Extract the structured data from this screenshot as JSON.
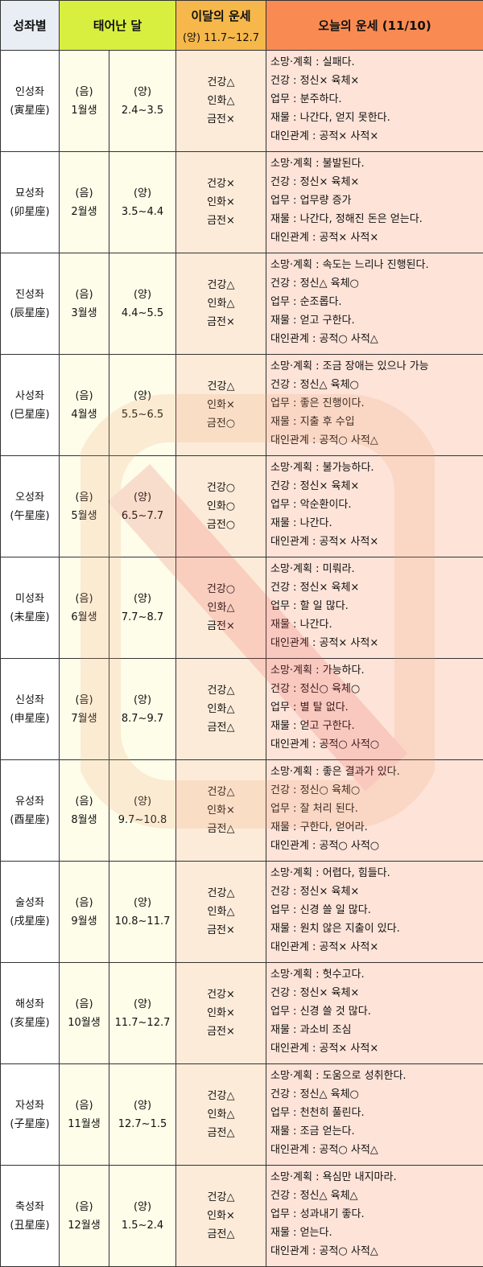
{
  "header": {
    "col_sign": "성좌별",
    "col_birth": "태어난 달",
    "col_month": "이달의 운세",
    "col_month_sub": "(양) 11.7~12.7",
    "col_today": "오늘의 운세 (11/10)"
  },
  "rows": [
    {
      "name": "인성좌",
      "hanja": "(寅星座)",
      "lunar": "(음)",
      "lunar_month": "1월생",
      "solar": "(양)",
      "solar_range": "2.4~3.5",
      "month": [
        "건강△",
        "인화△",
        "금전×"
      ],
      "today": [
        "소망·계획 : 실패다.",
        "건강 : 정신× 육체×",
        "업무 : 분주하다.",
        "재물 : 나간다, 얻지 못한다.",
        "대인관계 : 공적× 사적×"
      ]
    },
    {
      "name": "묘성좌",
      "hanja": "(卯星座)",
      "lunar": "(음)",
      "lunar_month": "2월생",
      "solar": "(양)",
      "solar_range": "3.5~4.4",
      "month": [
        "건강×",
        "인화×",
        "금전×"
      ],
      "today": [
        "소망·계획 : 불발된다.",
        "건강 : 정신× 육체×",
        "업무 : 업무량 증가",
        "재물 : 나간다, 정해진 돈은 얻는다.",
        "대인관계 : 공적× 사적×"
      ]
    },
    {
      "name": "진성좌",
      "hanja": "(辰星座)",
      "lunar": "(음)",
      "lunar_month": "3월생",
      "solar": "(양)",
      "solar_range": "4.4~5.5",
      "month": [
        "건강△",
        "인화△",
        "금전×"
      ],
      "today": [
        "소망·계획 : 속도는 느리나 진행된다.",
        "건강 : 정신△ 육체○",
        "업무 : 순조롭다.",
        "재물 : 얻고 구한다.",
        "대인관계 : 공적○ 사적△"
      ]
    },
    {
      "name": "사성좌",
      "hanja": "(巳星座)",
      "lunar": "(음)",
      "lunar_month": "4월생",
      "solar": "(양)",
      "solar_range": "5.5~6.5",
      "month": [
        "건강△",
        "인화×",
        "금전○"
      ],
      "today": [
        "소망·계획 : 조금 장애는 있으나 가능",
        "건강 : 정신△ 육체○",
        "업무 : 좋은 진행이다.",
        "재물 : 지출 후 수입",
        "대인관계 : 공적○ 사적△"
      ]
    },
    {
      "name": "오성좌",
      "hanja": "(午星座)",
      "lunar": "(음)",
      "lunar_month": "5월생",
      "solar": "(양)",
      "solar_range": "6.5~7.7",
      "month": [
        "건강○",
        "인화○",
        "금전○"
      ],
      "today": [
        "소망·계획 : 불가능하다.",
        "건강 : 정신× 육체×",
        "업무 : 악순환이다.",
        "재물 : 나간다.",
        "대인관계 : 공적× 사적×"
      ]
    },
    {
      "name": "미성좌",
      "hanja": "(未星座)",
      "lunar": "(음)",
      "lunar_month": "6월생",
      "solar": "(양)",
      "solar_range": "7.7~8.7",
      "month": [
        "건강○",
        "인화△",
        "금전×"
      ],
      "today": [
        "소망·계획 : 미뤄라.",
        "건강 : 정신× 육체×",
        "업무 : 할 일 많다.",
        "재물 : 나간다.",
        "대인관계 : 공적× 사적×"
      ]
    },
    {
      "name": "신성좌",
      "hanja": "(申星座)",
      "lunar": "(음)",
      "lunar_month": "7월생",
      "solar": "(양)",
      "solar_range": "8.7~9.7",
      "month": [
        "건강△",
        "인화△",
        "금전△"
      ],
      "today": [
        "소망·계획 : 가능하다.",
        "건강 : 정신○ 육체○",
        "업무 : 별 탈 없다.",
        "재물 : 얻고 구한다.",
        "대인관계 : 공적○ 사적○"
      ]
    },
    {
      "name": "유성좌",
      "hanja": "(酉星座)",
      "lunar": "(음)",
      "lunar_month": "8월생",
      "solar": "(양)",
      "solar_range": "9.7~10.8",
      "month": [
        "건강△",
        "인화×",
        "금전△"
      ],
      "today": [
        "소망·계획 : 좋은 결과가 있다.",
        "건강 : 정신○ 육체○",
        "업무 : 잘 처리 된다.",
        "재물 : 구한다, 얻어라.",
        "대인관계 : 공적○ 사적○"
      ]
    },
    {
      "name": "술성좌",
      "hanja": "(戌星座)",
      "lunar": "(음)",
      "lunar_month": "9월생",
      "solar": "(양)",
      "solar_range": "10.8~11.7",
      "month": [
        "건강△",
        "인화△",
        "금전×"
      ],
      "today": [
        "소망·계획 : 어렵다, 힘들다.",
        "건강 : 정신× 육체×",
        "업무 : 신경 쓸 일 많다.",
        "재물 : 원치 않은 지출이 있다.",
        "대인관계 : 공적× 사적×"
      ]
    },
    {
      "name": "해성좌",
      "hanja": "(亥星座)",
      "lunar": "(음)",
      "lunar_month": "10월생",
      "solar": "(양)",
      "solar_range": "11.7~12.7",
      "month": [
        "건강×",
        "인화×",
        "금전×"
      ],
      "today": [
        "소망·계획 : 헛수고다.",
        "건강 : 정신× 육체×",
        "업무 : 신경 쓸 것 많다.",
        "재물 : 과소비 조심",
        "대인관계 : 공적× 사적×"
      ]
    },
    {
      "name": "자성좌",
      "hanja": "(子星座)",
      "lunar": "(음)",
      "lunar_month": "11월생",
      "solar": "(양)",
      "solar_range": "12.7~1.5",
      "month": [
        "건강△",
        "인화△",
        "금전△"
      ],
      "today": [
        "소망·계획 : 도움으로 성취한다.",
        "건강 : 정신△ 육체○",
        "업무 : 천천히 풀린다.",
        "재물 : 조금 얻는다.",
        "대인관계 : 공적○ 사적△"
      ]
    },
    {
      "name": "축성좌",
      "hanja": "(丑星座)",
      "lunar": "(음)",
      "lunar_month": "12월생",
      "solar": "(양)",
      "solar_range": "1.5~2.4",
      "month": [
        "건강△",
        "인화×",
        "금전△"
      ],
      "today": [
        "소망·계획 : 욕심만 내지마라.",
        "건강 : 정신△ 육체△",
        "업무 : 성과내기 좋다.",
        "재물 : 얻는다.",
        "대인관계 : 공적○ 사적△"
      ]
    }
  ]
}
